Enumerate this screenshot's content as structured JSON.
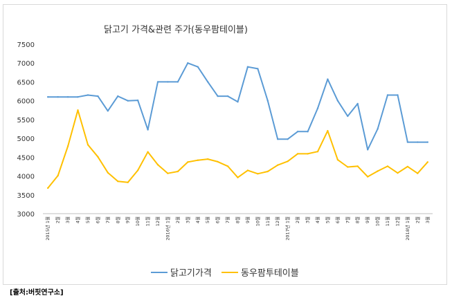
{
  "source_note": "[출처:버핏연구소]",
  "chart_data": {
    "type": "line",
    "title": "닭고기 가격&관련 주가(동우팜테이블)",
    "ylim": [
      3000,
      7500
    ],
    "yticks": [
      "3000",
      "3500",
      "4000",
      "4500",
      "5000",
      "5500",
      "6000",
      "6500",
      "7000",
      "7500"
    ],
    "categories": [
      "2015년 1월",
      "2월",
      "3월",
      "4월",
      "5월",
      "6월",
      "7월",
      "8월",
      "9월",
      "10월",
      "11월",
      "12월",
      "2016년 1월",
      "2월",
      "3월",
      "4월",
      "5월",
      "6월",
      "7월",
      "8월",
      "9월",
      "10월",
      "11월",
      "12월",
      "2017년 1월",
      "2월",
      "3월",
      "4월",
      "5월",
      "6월",
      "7월",
      "8월",
      "9월",
      "10월",
      "11월",
      "12월",
      "2018년 1월",
      "2월",
      "3월"
    ],
    "series": [
      {
        "name": "닭고기가격",
        "color": "#5b9bd5",
        "values": [
          6100,
          6100,
          6100,
          6100,
          6150,
          6120,
          5730,
          6120,
          6000,
          6010,
          5230,
          6500,
          6500,
          6500,
          7000,
          6900,
          6500,
          6120,
          6120,
          5970,
          6900,
          6850,
          6000,
          4980,
          4980,
          5180,
          5180,
          5800,
          6570,
          6000,
          5590,
          5920,
          4700,
          5250,
          6150,
          6150,
          4900,
          4900,
          4900
        ]
      },
      {
        "name": "동우팜투테이블",
        "color": "#ffc000",
        "values": [
          3680,
          4010,
          4790,
          5750,
          4830,
          4510,
          4090,
          3860,
          3830,
          4150,
          4640,
          4300,
          4070,
          4120,
          4370,
          4420,
          4450,
          4380,
          4260,
          3960,
          4150,
          4060,
          4120,
          4290,
          4390,
          4590,
          4590,
          4650,
          5200,
          4430,
          4240,
          4260,
          3980,
          4130,
          4260,
          4080,
          4250,
          4070,
          4370
        ]
      }
    ],
    "legend": "bottom"
  }
}
